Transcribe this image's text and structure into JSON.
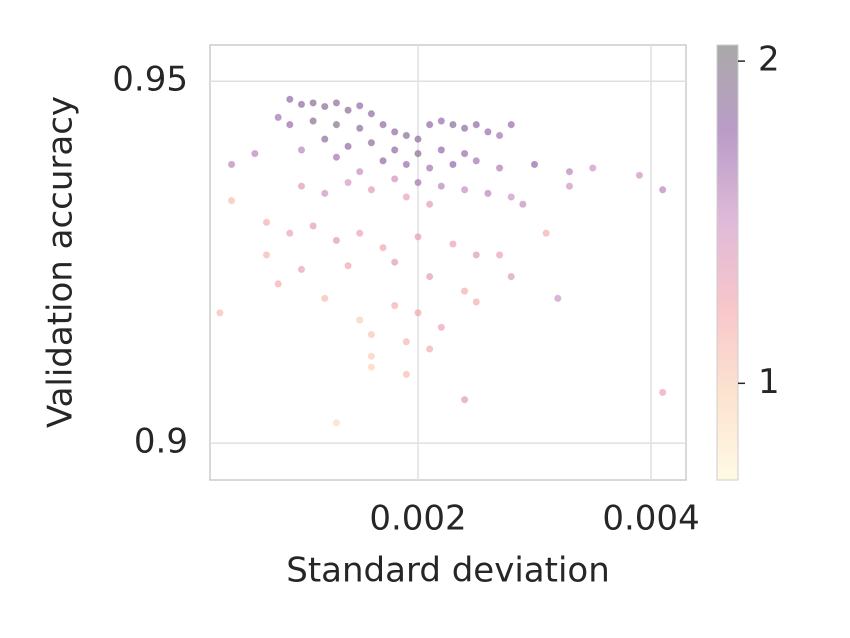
{
  "chart_data": {
    "type": "scatter",
    "x_label": "Standard deviation",
    "y_label": "Validation accuracy",
    "xlim": [
      0.000215,
      0.0043
    ],
    "xticks": [
      0.002,
      0.004
    ],
    "ylim": [
      0.8949,
      0.955
    ],
    "yticks": [
      0.9,
      0.95
    ],
    "grid": true,
    "colorbar": {
      "lim": [
        0.7,
        2.05
      ],
      "ticks": [
        1,
        2
      ],
      "colormap": [
        "#fff6d2",
        "#fad0b0",
        "#f2a0a8",
        "#c98bbf",
        "#8c5aa3",
        "#707070"
      ]
    },
    "series": [
      {
        "x": [
          0.0009,
          0.001,
          0.0011,
          0.0012,
          0.0013,
          0.0014,
          0.0015,
          0.0016,
          0.0008,
          0.0009,
          0.0011,
          0.0013,
          0.0015,
          0.0017,
          0.0018,
          0.0019,
          0.002,
          0.0021,
          0.0022,
          0.0023,
          0.0024,
          0.0025,
          0.0026,
          0.0027,
          0.0028,
          0.0012,
          0.0014,
          0.0016,
          0.0018,
          0.002,
          0.0022,
          0.0024,
          0.001,
          0.0013,
          0.0017,
          0.0019,
          0.0021,
          0.0023,
          0.0025,
          0.0027,
          0.003,
          0.0033,
          0.0035,
          0.0039,
          0.0041,
          0.0004,
          0.0006,
          0.0015,
          0.0018,
          0.002,
          0.0022,
          0.0024,
          0.0026,
          0.0014,
          0.0016,
          0.0012,
          0.001,
          0.0028,
          0.0029,
          0.0033,
          0.0019,
          0.0021,
          0.0004,
          0.0007,
          0.0009,
          0.0011,
          0.0013,
          0.0015,
          0.0017,
          0.002,
          0.0023,
          0.0025,
          0.0027,
          0.0031,
          0.0007,
          0.001,
          0.0014,
          0.0018,
          0.0021,
          0.0024,
          0.0028,
          0.0032,
          0.0003,
          0.0008,
          0.0012,
          0.0015,
          0.0018,
          0.002,
          0.0022,
          0.0025,
          0.0016,
          0.0019,
          0.0016,
          0.0016,
          0.0021,
          0.0019,
          0.0024,
          0.0013,
          0.0041
        ],
        "values": [
          0.9475,
          0.9468,
          0.947,
          0.9465,
          0.947,
          0.946,
          0.9466,
          0.9455,
          0.945,
          0.944,
          0.9445,
          0.944,
          0.9435,
          0.944,
          0.943,
          0.9425,
          0.942,
          0.944,
          0.9445,
          0.944,
          0.9435,
          0.944,
          0.943,
          0.9425,
          0.944,
          0.942,
          0.941,
          0.9415,
          0.9405,
          0.94,
          0.9405,
          0.94,
          0.9405,
          0.9395,
          0.939,
          0.9385,
          0.938,
          0.9385,
          0.939,
          0.938,
          0.9385,
          0.9375,
          0.938,
          0.937,
          0.935,
          0.9385,
          0.94,
          0.9375,
          0.9365,
          0.936,
          0.9355,
          0.935,
          0.9345,
          0.936,
          0.935,
          0.9345,
          0.9355,
          0.934,
          0.933,
          0.9355,
          0.934,
          0.933,
          0.9335,
          0.9305,
          0.929,
          0.93,
          0.928,
          0.929,
          0.927,
          0.9285,
          0.9275,
          0.926,
          0.926,
          0.929,
          0.926,
          0.924,
          0.9245,
          0.925,
          0.923,
          0.921,
          0.923,
          0.92,
          0.918,
          0.922,
          0.92,
          0.917,
          0.919,
          0.918,
          0.916,
          0.9195,
          0.915,
          0.914,
          0.912,
          0.9105,
          0.913,
          0.9095,
          0.906,
          0.9028,
          0.907
        ],
        "color_values": [
          1.8,
          1.85,
          1.9,
          1.9,
          1.85,
          1.9,
          1.8,
          1.85,
          1.7,
          1.75,
          1.9,
          1.95,
          1.9,
          1.85,
          1.8,
          1.9,
          1.85,
          1.8,
          1.75,
          1.9,
          1.85,
          1.8,
          1.75,
          1.7,
          1.75,
          1.85,
          1.8,
          1.9,
          1.85,
          1.9,
          1.8,
          1.75,
          1.6,
          1.7,
          1.8,
          1.75,
          1.7,
          1.8,
          1.7,
          1.65,
          1.8,
          1.6,
          1.5,
          1.5,
          1.6,
          1.6,
          1.6,
          1.55,
          1.5,
          1.7,
          1.6,
          1.55,
          1.6,
          1.45,
          1.4,
          1.5,
          1.4,
          1.5,
          1.55,
          1.5,
          1.3,
          1.35,
          1.1,
          1.2,
          1.3,
          1.35,
          1.4,
          1.3,
          1.25,
          1.35,
          1.3,
          1.4,
          1.3,
          1.2,
          1.15,
          1.3,
          1.25,
          1.4,
          1.35,
          1.2,
          1.4,
          1.5,
          1.1,
          1.2,
          1.1,
          1.0,
          1.2,
          1.25,
          1.3,
          1.2,
          1.05,
          1.15,
          1.0,
          0.95,
          1.2,
          1.1,
          1.4,
          0.9,
          1.3
        ]
      }
    ]
  }
}
